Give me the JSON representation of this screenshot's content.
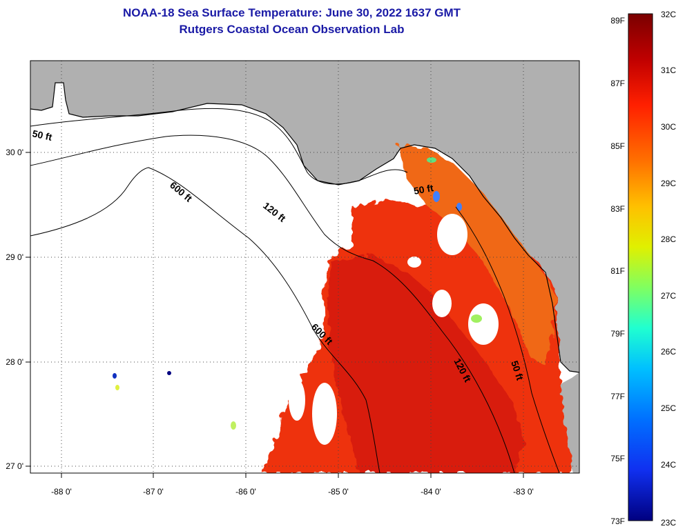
{
  "title": {
    "line1": "NOAA-18 Sea Surface Temperature:  June 30, 2022 1637 GMT",
    "line2": "Rutgers Coastal Ocean Observation Lab"
  },
  "map": {
    "lon_labels": [
      "-88 0'",
      "-87 0'",
      "-86 0'",
      "-85 0'",
      "-84 0'",
      "-83 0'"
    ],
    "lat_labels": [
      "30 0'",
      "29 0'",
      "28 0'",
      "27 0'"
    ],
    "contour_labels": [
      "50 ft",
      "600 ft",
      "120 ft",
      "50 ft",
      "600 ft",
      "120 ft",
      "50 ft"
    ],
    "colors": {
      "land": "#b0b0b0",
      "water_nodata": "#ffffff",
      "warm": "#ee3311",
      "hot": "#d81e0c"
    }
  },
  "colorbar": {
    "fahrenheit_labels": [
      "89F",
      "87F",
      "85F",
      "83F",
      "81F",
      "79F",
      "77F",
      "75F",
      "73F"
    ],
    "celsius_labels": [
      "32C",
      "31C",
      "30C",
      "29C",
      "28C",
      "27C",
      "26C",
      "25C",
      "24C",
      "23C"
    ],
    "gradient": [
      "#7a0000",
      "#c00000",
      "#ff2000",
      "#ff7000",
      "#ffc000",
      "#e0f000",
      "#80ff60",
      "#20ffd0",
      "#00c0ff",
      "#0070ff",
      "#1030f0",
      "#000080"
    ]
  }
}
